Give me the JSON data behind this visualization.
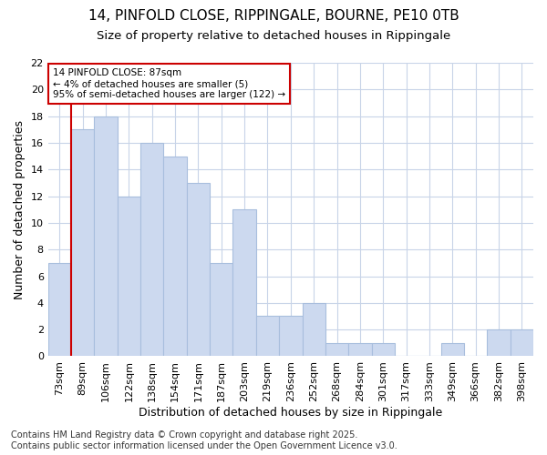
{
  "title1": "14, PINFOLD CLOSE, RIPPINGALE, BOURNE, PE10 0TB",
  "title2": "Size of property relative to detached houses in Rippingale",
  "xlabel": "Distribution of detached houses by size in Rippingale",
  "ylabel": "Number of detached properties",
  "categories": [
    "73sqm",
    "89sqm",
    "106sqm",
    "122sqm",
    "138sqm",
    "154sqm",
    "171sqm",
    "187sqm",
    "203sqm",
    "219sqm",
    "236sqm",
    "252sqm",
    "268sqm",
    "284sqm",
    "301sqm",
    "317sqm",
    "333sqm",
    "349sqm",
    "366sqm",
    "382sqm",
    "398sqm"
  ],
  "values": [
    7,
    17,
    18,
    12,
    16,
    15,
    13,
    7,
    11,
    3,
    3,
    4,
    1,
    1,
    1,
    0,
    0,
    1,
    0,
    2,
    2
  ],
  "bar_color": "#ccd9ef",
  "bar_edge_color": "#a8bedd",
  "grid_color": "#c8d4e8",
  "annotation_box_text": "14 PINFOLD CLOSE: 87sqm\n← 4% of detached houses are smaller (5)\n95% of semi-detached houses are larger (122) →",
  "annotation_box_color": "#ffffff",
  "annotation_box_edge_color": "#cc0000",
  "vline_color": "#cc0000",
  "ylim": [
    0,
    22
  ],
  "yticks": [
    0,
    2,
    4,
    6,
    8,
    10,
    12,
    14,
    16,
    18,
    20,
    22
  ],
  "footer_text": "Contains HM Land Registry data © Crown copyright and database right 2025.\nContains public sector information licensed under the Open Government Licence v3.0.",
  "background_color": "#ffffff",
  "plot_bg_color": "#ffffff",
  "title_fontsize": 11,
  "subtitle_fontsize": 9.5,
  "tick_fontsize": 8,
  "label_fontsize": 9,
  "footer_fontsize": 7
}
